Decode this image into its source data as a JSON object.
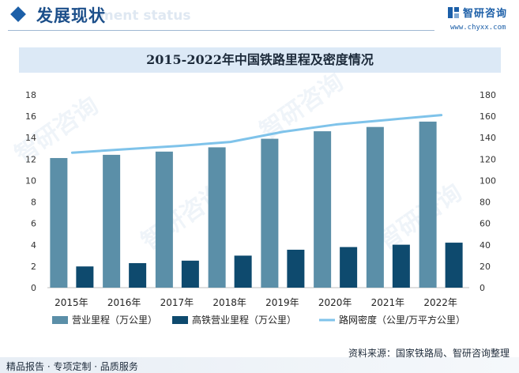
{
  "header": {
    "section_title": "发展现状",
    "ghost_text": "ment status",
    "brand_name": "智研咨询",
    "brand_url": "www.chyxx.com",
    "accent_color": "#1c5fa8"
  },
  "watermark_text": "智研咨询",
  "footer": {
    "source": "资料来源：国家铁路局、智研咨询整理",
    "services": "精品报告 · 专项定制 · 品质服务"
  },
  "chart_data": {
    "type": "bar",
    "title": "2015-2022年中国铁路里程及密度情况",
    "categories": [
      "2015年",
      "2016年",
      "2017年",
      "2018年",
      "2019年",
      "2020年",
      "2021年",
      "2022年"
    ],
    "ylim_left": [
      0,
      18
    ],
    "yticks_left": [
      0,
      2,
      4,
      6,
      8,
      10,
      12,
      14,
      16,
      18
    ],
    "ylim_right": [
      0,
      180
    ],
    "yticks_right": [
      0,
      20,
      40,
      60,
      80,
      100,
      120,
      140,
      160,
      180
    ],
    "grid": false,
    "legend_position": "bottom",
    "series": [
      {
        "name": "营业里程（万公里）",
        "type": "bar",
        "axis": "left",
        "color": "#5b8fa8",
        "values": [
          12.1,
          12.4,
          12.7,
          13.1,
          13.9,
          14.6,
          15.0,
          15.5
        ]
      },
      {
        "name": "高铁营业里程（万公里）",
        "type": "bar",
        "axis": "left",
        "color": "#0e4a6e",
        "values": [
          1.98,
          2.29,
          2.52,
          2.99,
          3.54,
          3.79,
          4.01,
          4.2
        ]
      },
      {
        "name": "路网密度（公里/万平方公里）",
        "type": "line",
        "axis": "right",
        "color": "#7fc3ea",
        "values": [
          126.0,
          129.2,
          132.2,
          136.0,
          145.5,
          152.3,
          156.7,
          161.1
        ]
      }
    ]
  }
}
